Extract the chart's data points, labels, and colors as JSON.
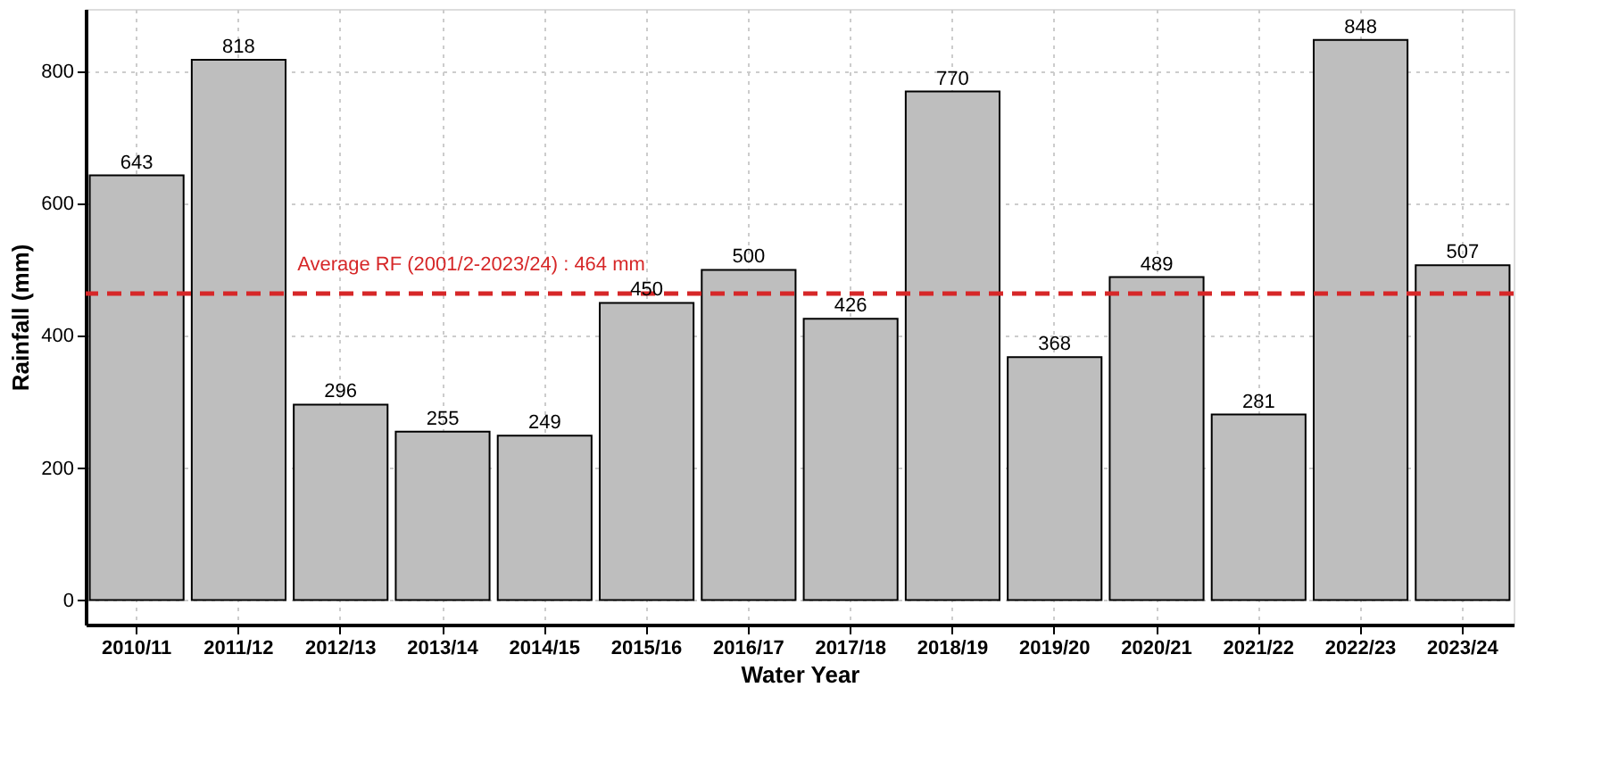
{
  "chart_data": {
    "type": "bar",
    "xlabel": "Water Year",
    "ylabel": "Rainfall (mm)",
    "categories": [
      "2010/11",
      "2011/12",
      "2012/13",
      "2013/14",
      "2014/15",
      "2015/16",
      "2016/17",
      "2017/18",
      "2018/19",
      "2019/20",
      "2020/21",
      "2021/22",
      "2022/23",
      "2023/24"
    ],
    "values": [
      643,
      818,
      296,
      255,
      249,
      450,
      500,
      426,
      770,
      368,
      489,
      281,
      848,
      507
    ],
    "color": "#bebebe",
    "data_labels": true,
    "ylim": [
      -37,
      895
    ],
    "yticks": [
      0,
      200,
      400,
      600,
      800
    ],
    "grid": true,
    "ref_lines": [
      {
        "axis": "y",
        "value": 464,
        "label": "Average RF (2001/2-2023/24) : 464 mm",
        "color": "#d62728",
        "line_style": "dashed"
      }
    ]
  }
}
